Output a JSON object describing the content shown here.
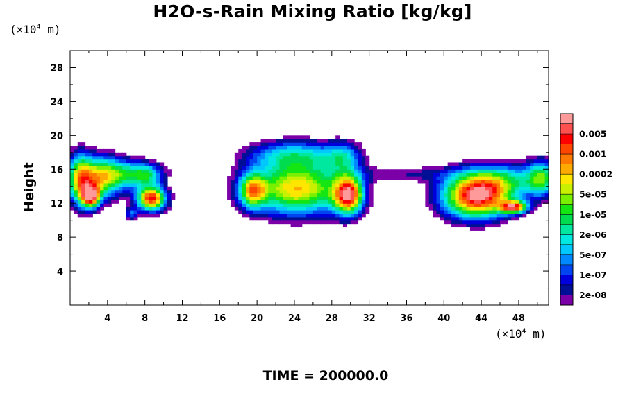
{
  "chart_data": {
    "type": "heatmap",
    "title": "H2O-s-Rain Mixing Ratio [kg/kg]",
    "ylabel": "Height",
    "x_unit": {
      "prefix": "(×10",
      "exp": "4",
      "suffix": " m)"
    },
    "y_unit": {
      "prefix": "(×10",
      "exp": "4",
      "suffix": " m)"
    },
    "xlim": [
      0,
      51.2
    ],
    "ylim": [
      0,
      30
    ],
    "x_ticks": [
      4,
      8,
      12,
      16,
      20,
      24,
      28,
      32,
      36,
      40,
      44,
      48
    ],
    "x_tick_labels": [
      "4",
      "8",
      "12",
      "16",
      "20",
      "24",
      "28",
      "32",
      "36",
      "40",
      "44",
      "48"
    ],
    "y_ticks": [
      4,
      8,
      12,
      16,
      20,
      24,
      28
    ],
    "y_tick_labels": [
      "4",
      "8",
      "12",
      "16",
      "20",
      "24",
      "28"
    ],
    "colorbar": {
      "colors": [
        "#7b00a8",
        "#000f96",
        "#0000dc",
        "#0045f0",
        "#0088ff",
        "#00c8ff",
        "#00e8e0",
        "#00e8a0",
        "#00dc50",
        "#14e614",
        "#78f000",
        "#c8f000",
        "#ffe600",
        "#ffaa00",
        "#ff7800",
        "#ff4600",
        "#ff0000",
        "#ff5050",
        "#ff9a9a"
      ],
      "labels": [
        "2e-08",
        "1e-07",
        "5e-07",
        "2e-06",
        "1e-05",
        "5e-05",
        "0.0002",
        "0.001",
        "0.005"
      ]
    },
    "time_label": "TIME = 200000.0",
    "blobs": [
      {
        "x": 3,
        "y": 15,
        "sx": 1.8,
        "sy": 1.8,
        "a": 1.7
      },
      {
        "x": 2.2,
        "y": 12.8,
        "sx": 0.7,
        "sy": 0.9,
        "a": 2.2
      },
      {
        "x": 6,
        "y": 15.5,
        "sx": 2.2,
        "sy": 1.2,
        "a": 1.0
      },
      {
        "x": 8.7,
        "y": 12.6,
        "sx": 1.1,
        "sy": 1.0,
        "a": 2.6
      },
      {
        "x": 8.2,
        "y": 15.4,
        "sx": 1.2,
        "sy": 0.9,
        "a": 0.9
      },
      {
        "x": 6.6,
        "y": 10.8,
        "sx": 0.5,
        "sy": 0.5,
        "a": 0.8
      },
      {
        "x": 1.0,
        "y": 14.8,
        "sx": 0.9,
        "sy": 2.2,
        "a": 1.4
      },
      {
        "x": 24.3,
        "y": 13.8,
        "sx": 3.6,
        "sy": 2.2,
        "a": 2.1
      },
      {
        "x": 19.5,
        "y": 13.5,
        "sx": 1.0,
        "sy": 1.4,
        "a": 1.6
      },
      {
        "x": 24.0,
        "y": 17.8,
        "sx": 3.6,
        "sy": 1.2,
        "a": 1.0
      },
      {
        "x": 29.8,
        "y": 13.0,
        "sx": 1.1,
        "sy": 1.6,
        "a": 2.4
      },
      {
        "x": 29.3,
        "y": 17.5,
        "sx": 1.3,
        "sy": 1.3,
        "a": 0.8
      },
      {
        "x": 43.5,
        "y": 12.8,
        "sx": 2.6,
        "sy": 1.8,
        "a": 2.7
      },
      {
        "x": 47.5,
        "y": 11.6,
        "sx": 1.0,
        "sy": 0.5,
        "a": 2.2
      },
      {
        "x": 46.5,
        "y": 14.8,
        "sx": 3.2,
        "sy": 1.4,
        "a": 1.0
      },
      {
        "x": 50.5,
        "y": 15.0,
        "sx": 1.1,
        "sy": 1.5,
        "a": 1.3
      },
      {
        "x": 36.5,
        "y": 15.5,
        "sx": 4.2,
        "sy": 0.7,
        "a": 0.4
      },
      {
        "x": 13.0,
        "y": 15.8,
        "sx": 1.6,
        "sy": 0.6,
        "a": 0.2
      }
    ]
  }
}
